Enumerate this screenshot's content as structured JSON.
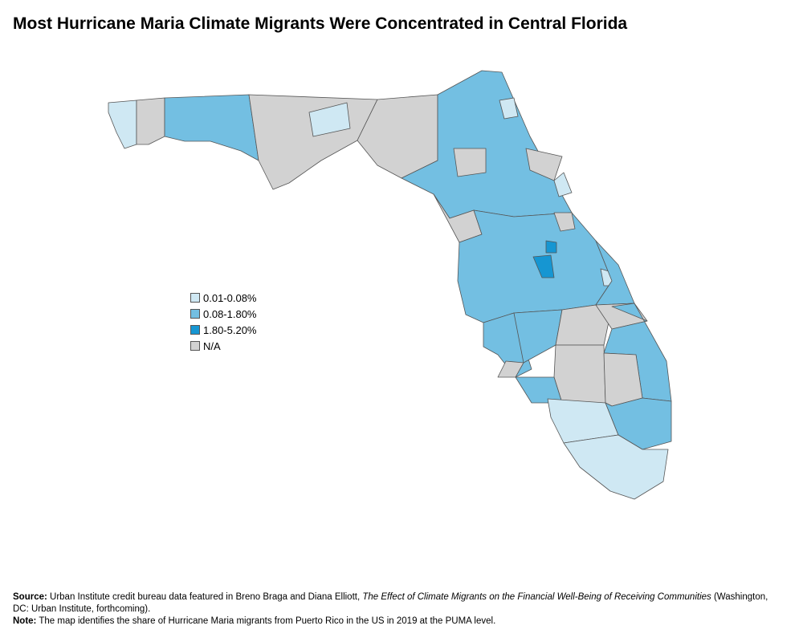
{
  "title": "Most Hurricane Maria Climate Migrants Were Concentrated in Central Florida",
  "legend": [
    {
      "label": "0.01-0.08%",
      "color": "#cfe8f3"
    },
    {
      "label": "0.08-1.80%",
      "color": "#73bfe2"
    },
    {
      "label": "1.80-5.20%",
      "color": "#1696d2"
    },
    {
      "label": "N/A",
      "color": "#d2d2d2"
    }
  ],
  "source": {
    "label": "Source:",
    "text": "Urban Institute credit bureau data featured in Breno Braga and Diana Elliott, ",
    "italic": "The Effect of Climate Migrants on the Financial Well-Being of Receiving Communities",
    "after": " (Washington, DC: Urban Institute, forthcoming)."
  },
  "note": {
    "label": "Note:",
    "text": "The map identifies the share of Hurricane Maria migrants from Puerto Rico in the US in 2019 at the PUMA level."
  }
}
